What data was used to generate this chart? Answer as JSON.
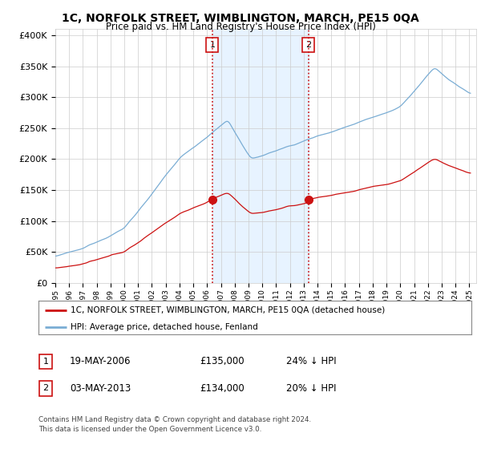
{
  "title": "1C, NORFOLK STREET, WIMBLINGTON, MARCH, PE15 0QA",
  "subtitle": "Price paid vs. HM Land Registry's House Price Index (HPI)",
  "legend_line1": "1C, NORFOLK STREET, WIMBLINGTON, MARCH, PE15 0QA (detached house)",
  "legend_line2": "HPI: Average price, detached house, Fenland",
  "footnote": "Contains HM Land Registry data © Crown copyright and database right 2024.\nThis data is licensed under the Open Government Licence v3.0.",
  "sale1_label": "1",
  "sale1_date": "19-MAY-2006",
  "sale1_price": "£135,000",
  "sale1_hpi": "24% ↓ HPI",
  "sale2_label": "2",
  "sale2_date": "03-MAY-2013",
  "sale2_price": "£134,000",
  "sale2_hpi": "20% ↓ HPI",
  "sale1_year": 2006.38,
  "sale2_year": 2013.33,
  "sale1_value": 135000,
  "sale2_value": 134000,
  "hpi_color": "#7aadd4",
  "price_color": "#cc1111",
  "vline_color": "#cc1111",
  "shade_color": "#ddeeff",
  "background_color": "#ffffff",
  "grid_color": "#cccccc",
  "ylim_max": 410000,
  "xlim_start": 1995,
  "xlim_end": 2025.5
}
